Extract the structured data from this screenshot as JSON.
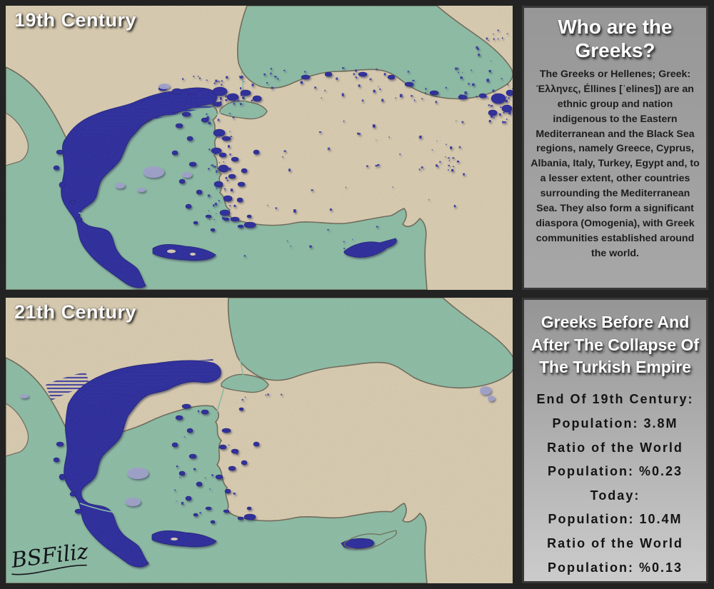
{
  "colors": {
    "sea": "#8cbda6",
    "land": "#d9ccb1",
    "coast": "#6e6a5a",
    "population": "#2b2c9e",
    "populationDark": "#1d1e77",
    "mixed": "#a0a1ce",
    "frame": "#232323",
    "panelBorder": "#383838",
    "panelGrayTop": "#969696",
    "panelGrayBottom": "#cbcbcb",
    "titleWhite": "#ffffff",
    "textDark": "#1d1d1d"
  },
  "maps": {
    "first": {
      "label": "19th Century"
    },
    "second": {
      "label": "21th Century"
    },
    "signature": "BSFiliz"
  },
  "panels": {
    "about": {
      "title": "Who are the Greeks?",
      "body": "The Greeks or Hellenes; Greek: Έλληνες, Éllines [ˈelines]) are an ethnic group and nation indigenous to the Eastern Mediterranean and the Black Sea regions, namely Greece, Cyprus, Albania, Italy, Turkey, Egypt and, to a lesser extent, other countries surrounding the Mediterranean Sea. They also form a significant diaspora (Omogenia), with Greek communities established around the world."
    },
    "stats": {
      "title": "Greeks Before And After The Collapse Of The Turkish Empire",
      "lines": [
        "End Of 19th Century:",
        "Population: 3.8M",
        "Ratio of the World",
        "Population: %0.23",
        "Today:",
        "Population: 10.4M",
        "Ratio of the World",
        "Population: %0.13"
      ]
    }
  }
}
